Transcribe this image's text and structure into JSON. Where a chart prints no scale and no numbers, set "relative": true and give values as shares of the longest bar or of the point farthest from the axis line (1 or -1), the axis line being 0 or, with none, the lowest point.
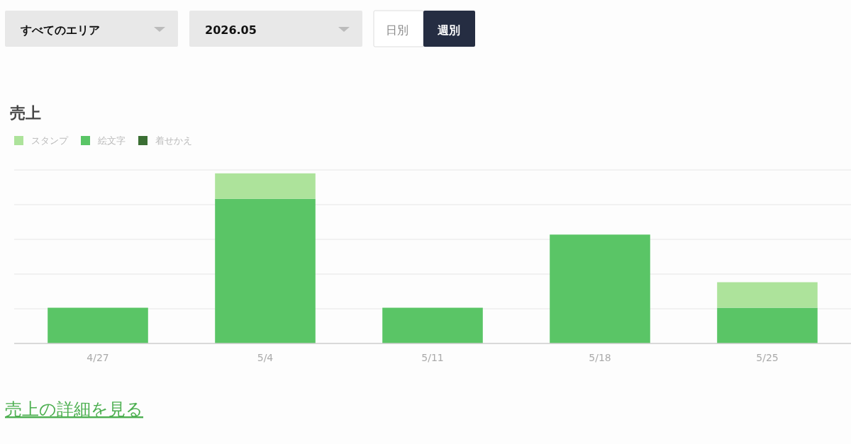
{
  "chart_data": {
    "type": "bar",
    "title": "売上",
    "stacked": true,
    "relative": true,
    "grid": "y",
    "legend": "top left",
    "categories": [
      "4/27",
      "5/4",
      "5/11",
      "5/18",
      "5/25"
    ],
    "series": [
      {
        "name": "着せかえ",
        "color": "#3b6f34",
        "values": [
          0,
          0,
          0,
          0,
          0
        ]
      },
      {
        "name": "絵文字",
        "color": "#5ac566",
        "values": [
          0.21,
          0.85,
          0.21,
          0.64,
          0.21
        ]
      },
      {
        "name": "スタンプ",
        "color": "#ade39b",
        "values": [
          0,
          0.15,
          0,
          0,
          0.15
        ]
      }
    ],
    "annotations": [
      "すべてのエリア",
      "2026.05",
      "日別",
      "週別",
      "売上の詳細を見る"
    ]
  }
}
